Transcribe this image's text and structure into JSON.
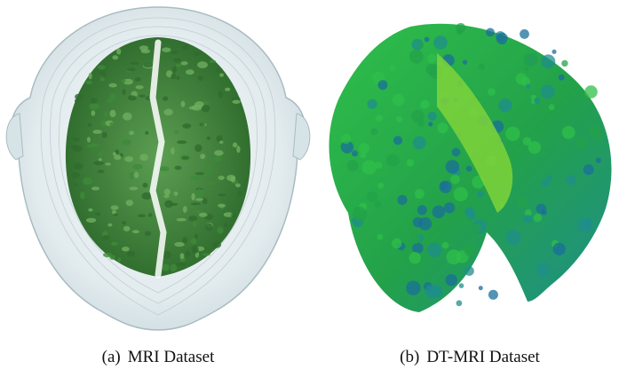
{
  "figures": [
    {
      "label": "(a)",
      "caption": "MRI Dataset",
      "palette": {
        "shell": "#dfe9ec",
        "shell_edge": "#a9bcc2",
        "tissue_dark": "#2f6b2e",
        "tissue_mid": "#3f8a3a",
        "tissue_light": "#6fae5f",
        "background": "#ffffff"
      }
    },
    {
      "label": "(b)",
      "caption": "DT-MRI Dataset",
      "palette": {
        "green_bright": "#2fbf4a",
        "green_mid": "#23a14a",
        "teal": "#1f8e8c",
        "blue": "#1a6f9a",
        "lime": "#7fd33a",
        "background": "#ffffff"
      }
    }
  ]
}
